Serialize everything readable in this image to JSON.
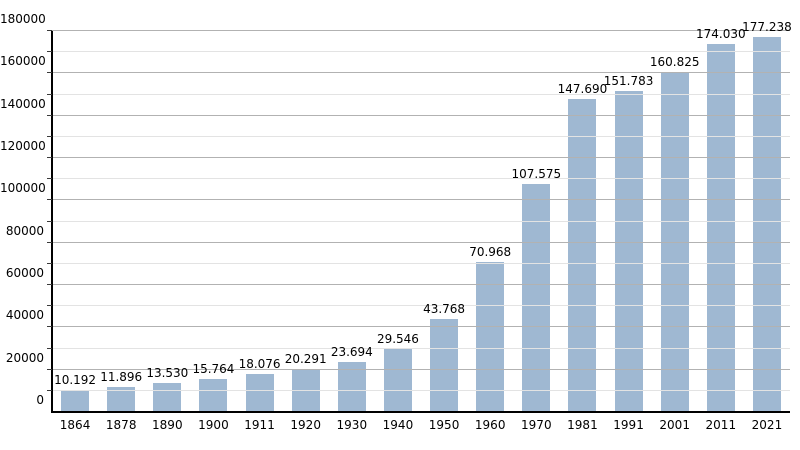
{
  "chart_data": {
    "type": "bar",
    "title": "",
    "xlabel": "",
    "ylabel": "",
    "categories": [
      "1864",
      "1878",
      "1890",
      "1900",
      "1911",
      "1920",
      "1930",
      "1940",
      "1950",
      "1960",
      "1970",
      "1981",
      "1991",
      "2001",
      "2011",
      "2021"
    ],
    "values": [
      10192,
      11896,
      13530,
      15764,
      18076,
      20291,
      23694,
      29546,
      43768,
      70968,
      107575,
      147690,
      151783,
      160825,
      174030,
      177238
    ],
    "bar_value_labels": [
      "10.192",
      "11.896",
      "13.530",
      "15.764",
      "18.076",
      "20.291",
      "23.694",
      "29.546",
      "43.768",
      "70.968",
      "107.575",
      "147.690",
      "151.783",
      "160.825",
      "174.030",
      "177.238"
    ],
    "y_axis": {
      "min": 0,
      "max": 180000,
      "major_step": 20000,
      "minor_step": 10000,
      "tick_labels": [
        "0",
        "20000",
        "40000",
        "60000",
        "80000",
        "100000",
        "120000",
        "140000",
        "160000",
        "180000"
      ]
    },
    "grid": true,
    "legend": "none",
    "colors": {
      "bar": "#9fb8d2",
      "major_gridline": "#b2b2b2",
      "minor_gridline": "#e3e3e3",
      "axis": "#000000",
      "text": "#000000",
      "background": "#ffffff"
    }
  }
}
